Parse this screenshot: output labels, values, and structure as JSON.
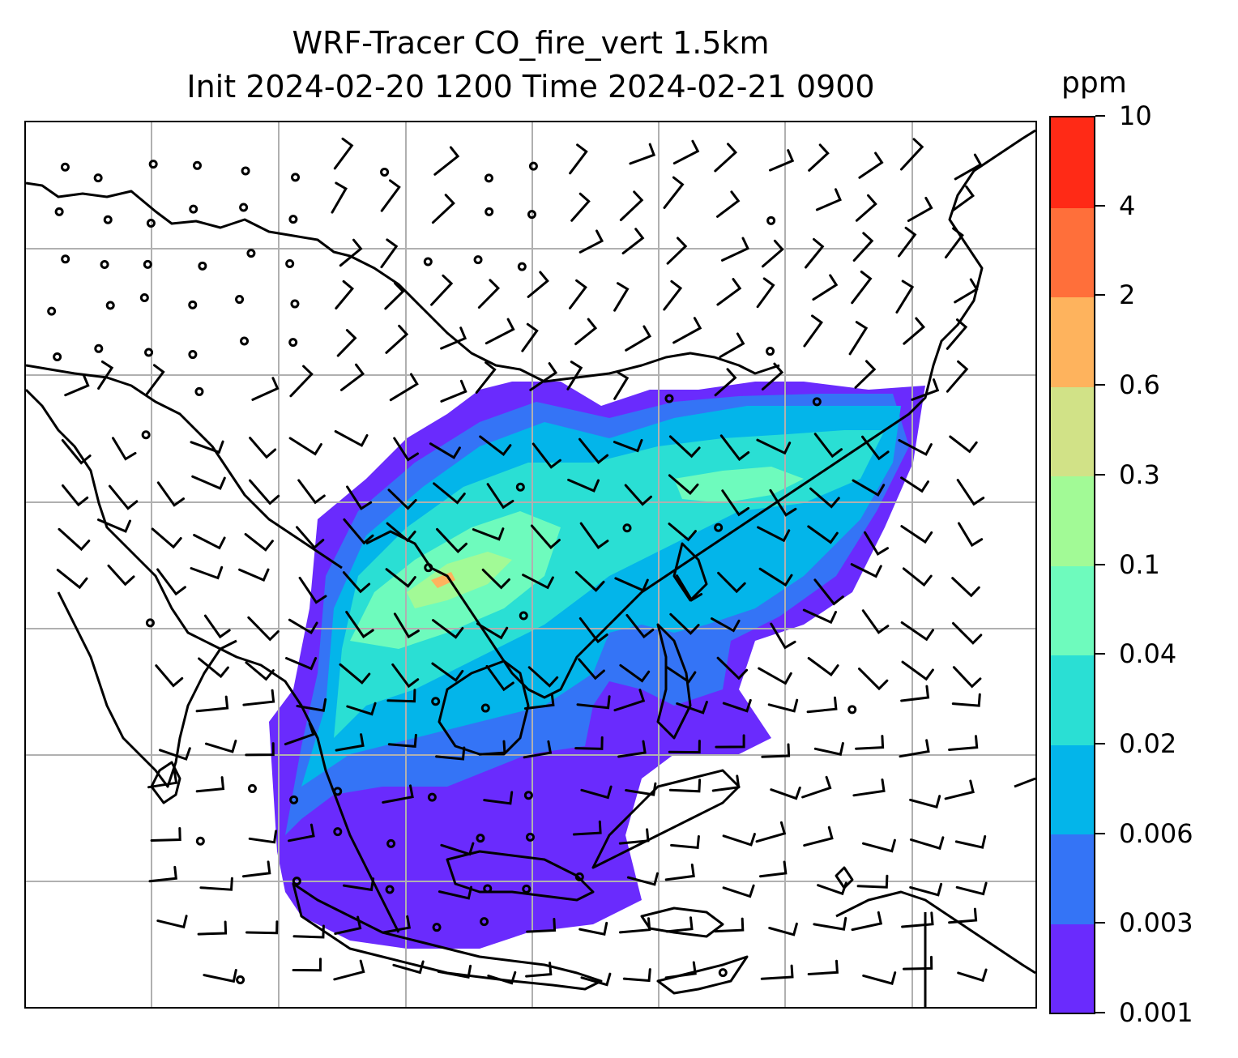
{
  "title": {
    "line1": "WRF-Tracer CO_fire_vert 1.5km",
    "line2": "Init 2024-02-20 1200 Time 2024-02-21 0900"
  },
  "map": {
    "projection": "regional",
    "gridlines": true,
    "gridline_color": "#b0b0b0",
    "coastline_color": "#000000",
    "features": [
      "coastlines",
      "country-borders",
      "wind-barbs",
      "calm-wind-circles",
      "tracer-concentration-fill"
    ]
  },
  "colorbar": {
    "unit_label": "ppm",
    "tick_labels": [
      "0.001",
      "0.003",
      "0.006",
      "0.02",
      "0.04",
      "0.1",
      "0.3",
      "0.6",
      "2",
      "4",
      "10"
    ],
    "colors": [
      "#6a2bfd",
      "#3474f6",
      "#03b5ea",
      "#2adfd4",
      "#6efbbd",
      "#a2fa96",
      "#d1e287",
      "#feb35d",
      "#ff6f3a",
      "#ff2a16"
    ]
  }
}
